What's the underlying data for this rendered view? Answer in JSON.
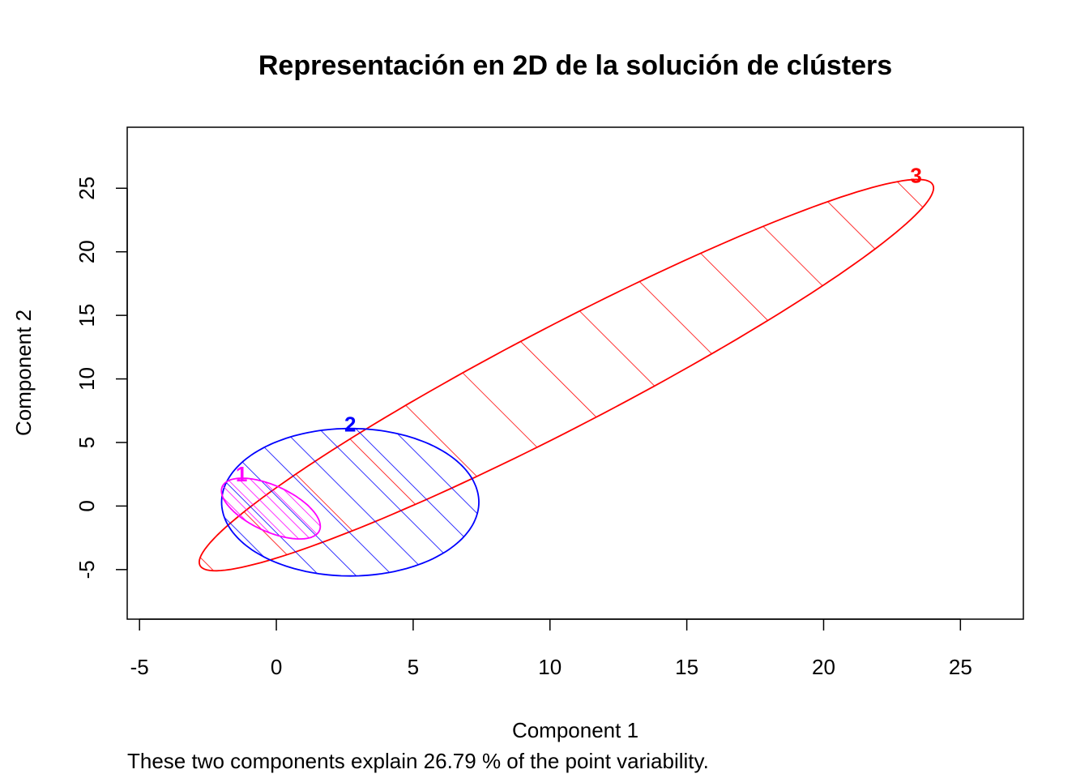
{
  "chart_data": {
    "type": "scatter",
    "title": "Representación en 2D de la solución de clústers",
    "xlabel": "Component 1",
    "ylabel": "Component 2",
    "subtitle": "These two components explain 26.79 % of the point variability.",
    "xlim": [
      -5.45,
      27.3
    ],
    "ylim": [
      -8.9,
      29.8
    ],
    "x_ticks": [
      "-5",
      "0",
      "5",
      "10",
      "15",
      "20",
      "25"
    ],
    "y_ticks": [
      "-5",
      "0",
      "5",
      "10",
      "15",
      "20",
      "25"
    ],
    "grid": false,
    "legend": "none",
    "clusters": [
      {
        "label": "1",
        "color": "#FF00FF",
        "shading": "dense diagonal hatch",
        "center": [
          -0.2,
          -0.2
        ],
        "semi_axis_major": 2.7,
        "semi_axis_minor": 1.3,
        "angle_deg": -58
      },
      {
        "label": "2",
        "color": "#0000FF",
        "shading": "diagonal hatch",
        "center": [
          2.7,
          0.3
        ],
        "semi_axis_major": 4.7,
        "semi_axis_minor": 5.8,
        "angle_deg": 0
      },
      {
        "label": "3",
        "color": "#FF0000",
        "shading": "sparse diagonal hatch",
        "center": [
          10.6,
          10.3
        ],
        "semi_axis_major": 20.2,
        "semi_axis_minor": 3.0,
        "angle_deg": 49.1
      }
    ]
  }
}
